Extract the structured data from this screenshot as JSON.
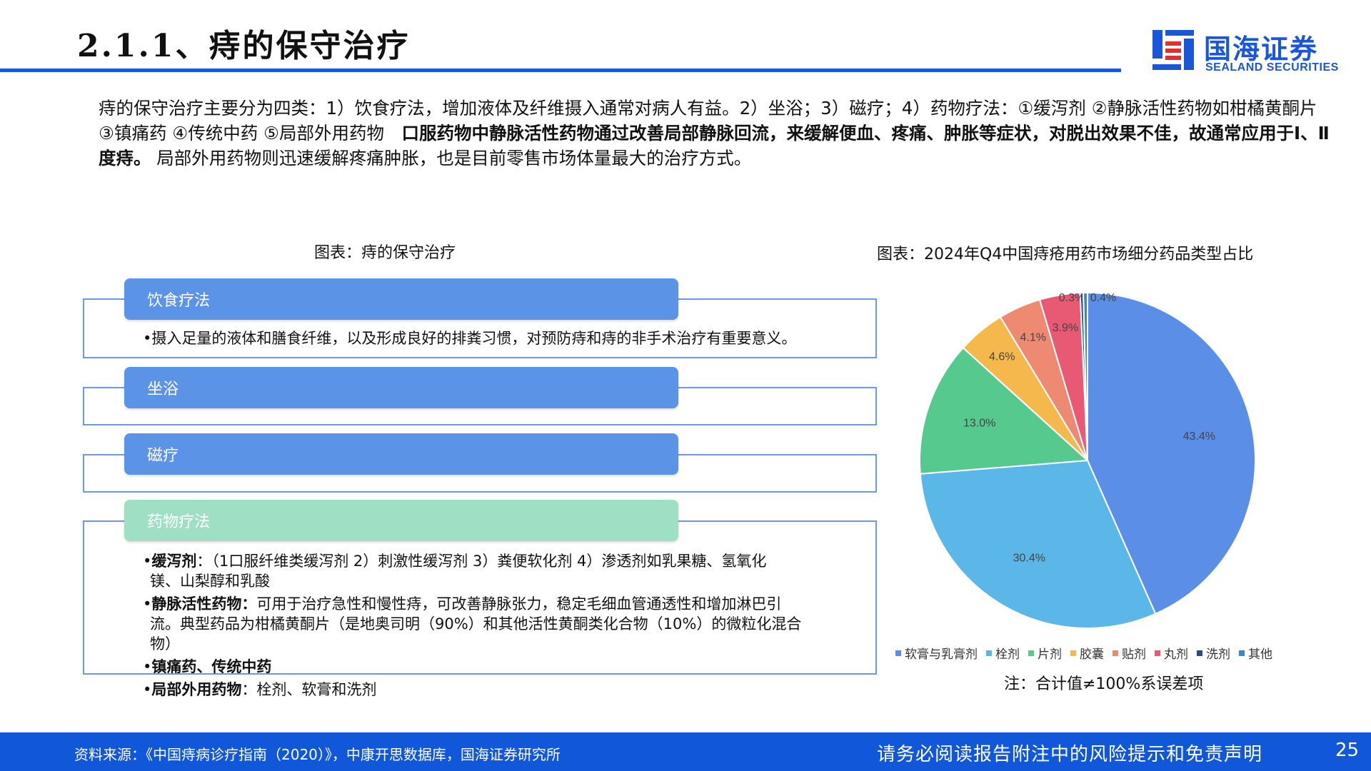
{
  "header": {
    "title": "2.1.1、痔的保守治疗",
    "logo_cn": "国海证券",
    "logo_en": "SEALAND SECURITIES"
  },
  "intro": {
    "part1": "痔的保守治疗主要分为四类：1）饮食疗法，增加液体及纤维摄入通常对病人有益。2）坐浴；3）磁疗；4）药物疗法：①缓泻剂 ②静脉活性药物如柑橘黄酮片 ③镇痛药 ④传统中药 ⑤局部外用药物　",
    "bold": "口服药物中静脉活性药物通过改善局部静脉回流，来缓解便血、疼痛、肿胀等症状，对脱出效果不佳，故通常应用于Ⅰ、Ⅱ度痔。",
    "part2": "  局部外用药物则迅速缓解疼痛肿胀，也是目前零售市场体量最大的治疗方式。"
  },
  "left_figure": {
    "caption": "图表：痔的保守治疗",
    "sections": [
      {
        "title": "饮食疗法",
        "body": "•摄入足量的液体和膳食纤维，以及形成良好的排粪习惯，对预防痔和痔的非手术治疗有重要意义。"
      },
      {
        "title": "坐浴"
      },
      {
        "title": "磁疗"
      },
      {
        "title": "药物疗法",
        "items": [
          {
            "bullet": "•",
            "label": "缓泻剂",
            "text": "：（1口服纤维类缓泻剂 2）刺激性缓泻剂 3）粪便软化剂 4）渗透剂如乳果糖、氢氧化",
            "text2": "镁、山梨醇和乳酸"
          },
          {
            "bullet": "•",
            "label": "静脉活性药物：",
            "text": "可用于治疗急性和慢性痔，可改善静脉张力，稳定毛细血管通透性和增加淋巴引",
            "text2": "流。典型药品为柑橘黄酮片（是地奥司明（90%）和其他活性黄酮类化合物（10%）的微粒化混合",
            "text3": "物）"
          },
          {
            "bullet": "•",
            "label": "镇痛药、传统中药"
          },
          {
            "bullet": "•",
            "label": "局部外用药物",
            "text": "：栓剂、软膏和洗剂"
          }
        ]
      }
    ]
  },
  "right_figure": {
    "caption": "图表：2024年Q4中国痔疮用药市场细分药品类型占比",
    "note": "注：合计值≠100%系误差项"
  },
  "chart_data": {
    "type": "pie",
    "title": "2024年Q4中国痔疮用药市场细分药品类型占比",
    "categories": [
      "软膏与乳膏剂",
      "栓剂",
      "片剂",
      "胶囊",
      "贴剂",
      "丸剂",
      "洗剂",
      "其他"
    ],
    "values": [
      43.4,
      30.4,
      13.0,
      4.6,
      4.1,
      3.9,
      0.3,
      0.4
    ],
    "labels": [
      "43.4%",
      "30.4%",
      "13.0%",
      "4.6%",
      "4.1%",
      "3.9%",
      "0.3%",
      "0.4%"
    ],
    "colors": [
      "#5b8ee6",
      "#5ab7e8",
      "#56c98f",
      "#f5b84c",
      "#ef8a72",
      "#e85a74",
      "#2b4a80",
      "#3f86c6"
    ],
    "legend_position": "bottom"
  },
  "footer": {
    "source": "资料来源：《中国痔病诊疗指南（2020）》，中康开思数据库，国海证券研究所",
    "disclaimer": "请务必阅读报告附注中的风险提示和免责声明",
    "page": "25"
  }
}
